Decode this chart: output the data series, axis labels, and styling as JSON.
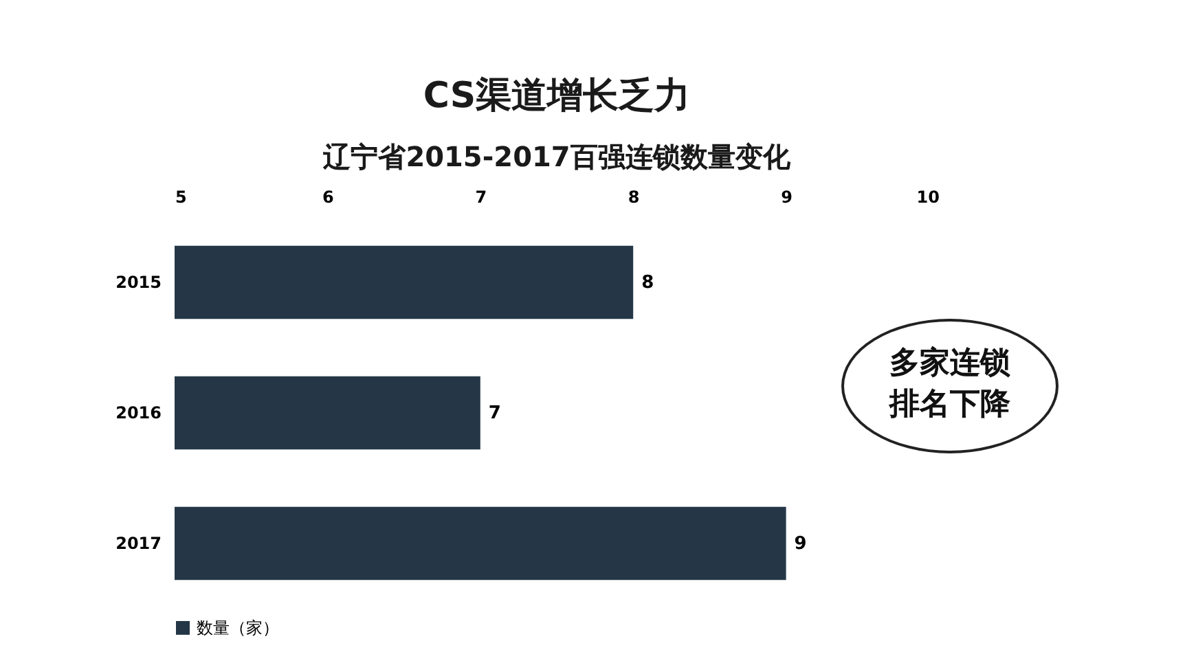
{
  "chart_data": {
    "type": "bar",
    "orientation": "horizontal",
    "title": "CS渠道增长乏力",
    "subtitle": "辽宁省2015-2017百强连锁数量变化",
    "categories": [
      "2015",
      "2016",
      "2017"
    ],
    "series": [
      {
        "name": "数量（家）",
        "color": "#253746",
        "values": [
          8,
          7,
          9
        ]
      }
    ],
    "xlim": [
      5,
      10
    ],
    "xticks": [
      5,
      6,
      7,
      8,
      9,
      10
    ],
    "data_labels": true,
    "legend": "bottom",
    "grid": false,
    "annotations": [
      "多家连锁",
      "排名下降"
    ]
  }
}
